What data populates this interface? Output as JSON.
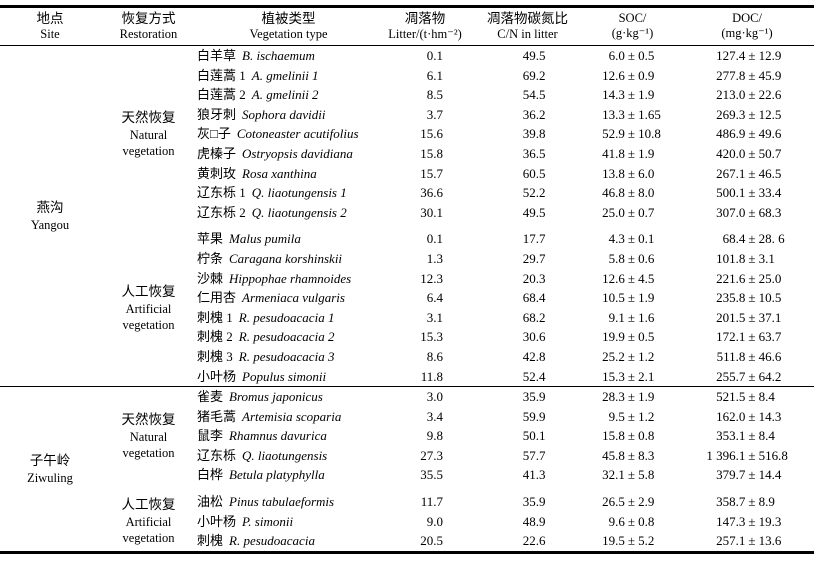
{
  "table": {
    "pm": "±",
    "headers": {
      "site": {
        "cn": "地点",
        "en": "Site"
      },
      "restoration": {
        "cn": "恢复方式",
        "en": "Restoration"
      },
      "vegetation": {
        "cn": "植被类型",
        "en": "Vegetation type"
      },
      "litter": {
        "cn": "凋落物",
        "en": "Litter/(t·hm⁻²)"
      },
      "cn_ratio": {
        "cn": "凋落物碳氮比",
        "en": "C/N in litter"
      },
      "soc": {
        "cn": "SOC/",
        "en": "(g·kg⁻¹)"
      },
      "doc": {
        "cn": "DOC/",
        "en": "(mg·kg⁻¹)"
      }
    },
    "groups": [
      {
        "site": {
          "cn": "燕沟",
          "en": "Yangou"
        },
        "subgroups": [
          {
            "restoration": {
              "cn": "天然恢复",
              "en": "Natural",
              "en2": "vegetation"
            },
            "rows": [
              {
                "cn": "白羊草",
                "latin": "B. ischaemum",
                "litter": "0.1",
                "cn_ratio": "49.5",
                "soc_mean": "6.0",
                "soc_err": "0.5",
                "doc_mean": "127.4",
                "doc_err": "12.9"
              },
              {
                "cn": "白莲蒿 1",
                "latin": "A. gmelinii 1",
                "litter": "6.1",
                "cn_ratio": "69.2",
                "soc_mean": "12.6",
                "soc_err": "0.9",
                "doc_mean": "277.8",
                "doc_err": "45.9"
              },
              {
                "cn": "白莲蒿 2",
                "latin": "A. gmelinii 2",
                "litter": "8.5",
                "cn_ratio": "54.5",
                "soc_mean": "14.3",
                "soc_err": "1.9",
                "doc_mean": "213.0",
                "doc_err": "22.6"
              },
              {
                "cn": "狼牙刺",
                "latin": "Sophora davidii",
                "litter": "3.7",
                "cn_ratio": "36.2",
                "soc_mean": "13.3",
                "soc_err": "1.65",
                "doc_mean": "269.3",
                "doc_err": "12.5"
              },
              {
                "cn": "灰□子",
                "latin": "Cotoneaster acutifolius",
                "litter": "15.6",
                "cn_ratio": "39.8",
                "soc_mean": "52.9",
                "soc_err": "10.8",
                "doc_mean": "486.9",
                "doc_err": "49.6"
              },
              {
                "cn": "虎榛子",
                "latin": "Ostryopsis davidiana",
                "litter": "15.8",
                "cn_ratio": "36.5",
                "soc_mean": "41.8",
                "soc_err": "1.9",
                "doc_mean": "420.0",
                "doc_err": "50.7"
              },
              {
                "cn": "黄刺玫",
                "latin": "Rosa xanthina",
                "litter": "15.7",
                "cn_ratio": "60.5",
                "soc_mean": "13.8",
                "soc_err": "6.0",
                "doc_mean": "267.1",
                "doc_err": "46.5"
              },
              {
                "cn": "辽东栎 1",
                "latin": "Q. liaotungensis 1",
                "litter": "36.6",
                "cn_ratio": "52.2",
                "soc_mean": "46.8",
                "soc_err": "8.0",
                "doc_mean": "500.1",
                "doc_err": "33.4"
              },
              {
                "cn": "辽东栎 2",
                "latin": "Q. liaotungensis 2",
                "litter": "30.1",
                "cn_ratio": "49.5",
                "soc_mean": "25.0",
                "soc_err": "0.7",
                "doc_mean": "307.0",
                "doc_err": "68.3"
              }
            ]
          },
          {
            "restoration": {
              "cn": "人工恢复",
              "en": "Artificial",
              "en2": "vegetation"
            },
            "rows": [
              {
                "cn": "苹果",
                "latin": "Malus pumila",
                "litter": "0.1",
                "cn_ratio": "17.7",
                "soc_mean": "4.3",
                "soc_err": "0.1",
                "doc_mean": "68.4",
                "doc_err": "28. 6"
              },
              {
                "cn": "柠条",
                "latin": "Caragana korshinskii",
                "litter": "1.3",
                "cn_ratio": "29.7",
                "soc_mean": "5.8",
                "soc_err": "0.6",
                "doc_mean": "101.8",
                "doc_err": "3.1"
              },
              {
                "cn": "沙棘",
                "latin": "Hippophae rhamnoides",
                "litter": "12.3",
                "cn_ratio": "20.3",
                "soc_mean": "12.6",
                "soc_err": "4.5",
                "doc_mean": "221.6",
                "doc_err": "25.0"
              },
              {
                "cn": "仁用杏",
                "latin": "Armeniaca vulgaris",
                "litter": "6.4",
                "cn_ratio": "68.4",
                "soc_mean": "10.5",
                "soc_err": "1.9",
                "doc_mean": "235.8",
                "doc_err": "10.5"
              },
              {
                "cn": "刺槐 1",
                "latin": "R. pesudoacacia 1",
                "litter": "3.1",
                "cn_ratio": "68.2",
                "soc_mean": "9.1",
                "soc_err": "1.6",
                "doc_mean": "201.5",
                "doc_err": "37.1"
              },
              {
                "cn": "刺槐 2",
                "latin": "R. pesudoacacia 2",
                "litter": "15.3",
                "cn_ratio": "30.6",
                "soc_mean": "19.9",
                "soc_err": "0.5",
                "doc_mean": "172.1",
                "doc_err": "63.7"
              },
              {
                "cn": "刺槐 3",
                "latin": "R. pesudoacacia 3",
                "litter": "8.6",
                "cn_ratio": "42.8",
                "soc_mean": "25.2",
                "soc_err": "1.2",
                "doc_mean": "511.8",
                "doc_err": "46.6"
              },
              {
                "cn": "小叶杨",
                "latin": "Populus simonii",
                "litter": "11.8",
                "cn_ratio": "52.4",
                "soc_mean": "15.3",
                "soc_err": "2.1",
                "doc_mean": "255.7",
                "doc_err": "64.2"
              }
            ]
          }
        ]
      },
      {
        "site": {
          "cn": "子午岭",
          "en": "Ziwuling"
        },
        "subgroups": [
          {
            "restoration": {
              "cn": "天然恢复",
              "en": "Natural",
              "en2": "vegetation"
            },
            "rows": [
              {
                "cn": "雀麦",
                "latin": "Bromus japonicus",
                "litter": "3.0",
                "cn_ratio": "35.9",
                "soc_mean": "28.3",
                "soc_err": "1.9",
                "doc_mean": "521.5",
                "doc_err": "8.4"
              },
              {
                "cn": "猪毛蒿",
                "latin": "Artemisia scoparia",
                "litter": "3.4",
                "cn_ratio": "59.9",
                "soc_mean": "9.5",
                "soc_err": "1.2",
                "doc_mean": "162.0",
                "doc_err": "14.3"
              },
              {
                "cn": "鼠李",
                "latin": "Rhamnus davurica",
                "litter": "9.8",
                "cn_ratio": "50.1",
                "soc_mean": "15.8",
                "soc_err": "0.8",
                "doc_mean": "353.1",
                "doc_err": "8.4"
              },
              {
                "cn": "辽东栎",
                "latin": "Q. liaotungensis",
                "litter": "27.3",
                "cn_ratio": "57.7",
                "soc_mean": "45.8",
                "soc_err": "8.3",
                "doc_mean": "1 396.1",
                "doc_err": "516.8"
              },
              {
                "cn": "白桦",
                "latin": "Betula platyphylla",
                "litter": "35.5",
                "cn_ratio": "41.3",
                "soc_mean": "32.1",
                "soc_err": "5.8",
                "doc_mean": "379.7",
                "doc_err": "14.4"
              }
            ]
          },
          {
            "restoration": {
              "cn": "人工恢复",
              "en": "Artificial",
              "en2": "vegetation"
            },
            "rows": [
              {
                "cn": "油松",
                "latin": "Pinus tabulaeformis",
                "litter": "11.7",
                "cn_ratio": "35.9",
                "soc_mean": "26.5",
                "soc_err": "2.9",
                "doc_mean": "358.7",
                "doc_err": "8.9"
              },
              {
                "cn": "小叶杨",
                "latin": "P. simonii",
                "litter": "9.0",
                "cn_ratio": "48.9",
                "soc_mean": "9.6",
                "soc_err": "0.8",
                "doc_mean": "147.3",
                "doc_err": "19.3"
              },
              {
                "cn": "刺槐",
                "latin": "R. pesudoacacia",
                "litter": "20.5",
                "cn_ratio": "22.6",
                "soc_mean": "19.5",
                "soc_err": "5.2",
                "doc_mean": "257.1",
                "doc_err": "13.6"
              }
            ]
          }
        ]
      }
    ]
  }
}
